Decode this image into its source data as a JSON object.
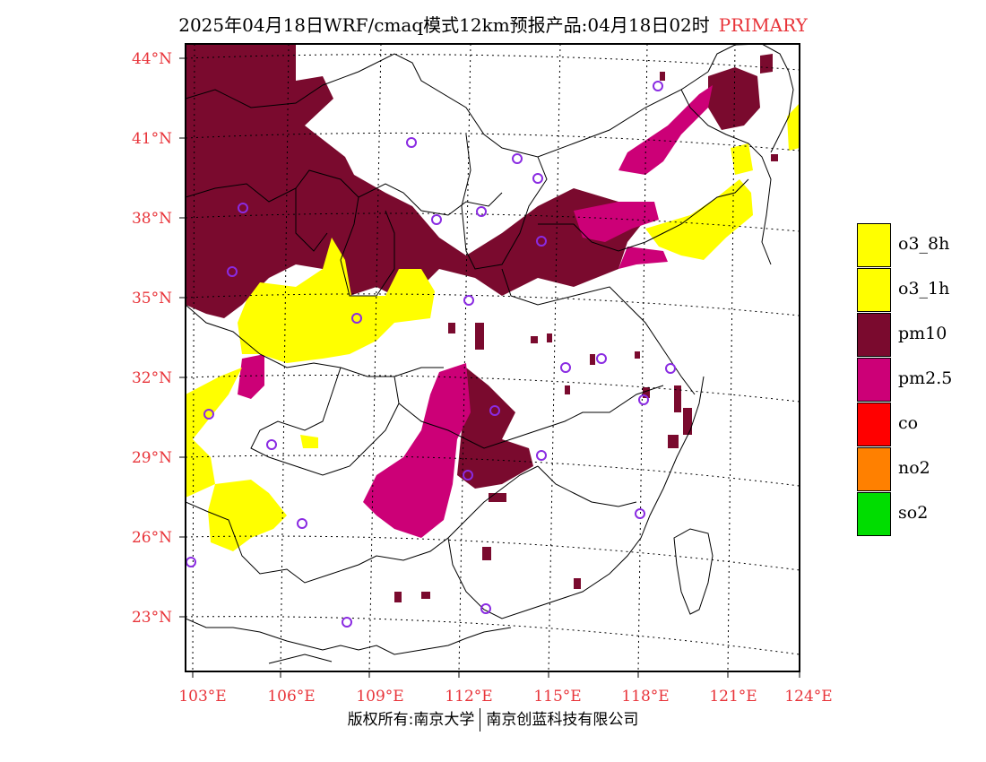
{
  "title": {
    "main": "2025年04月18日WRF/cmaq模式12km预报产品:04月18日02时",
    "tag": "PRIMARY"
  },
  "map": {
    "lat_labels": [
      "44°N",
      "41°N",
      "38°N",
      "35°N",
      "32°N",
      "29°N",
      "26°N",
      "23°N"
    ],
    "lon_labels": [
      "103°E",
      "106°E",
      "109°E",
      "112°E",
      "115°E",
      "118°E",
      "121°E",
      "124°E"
    ],
    "colors": {
      "o3_8h": "#ffff00",
      "o3_1h": "#ffff00",
      "pm10": "#7a0a2e",
      "pm2_5": "#cc0077",
      "co": "#ff0000",
      "no2": "#ff8000",
      "so2": "#00dd00",
      "station": "#8a2be2",
      "axis_label": "#e8343a"
    }
  },
  "legend": [
    {
      "label": "o3_8h",
      "color": "#ffff00"
    },
    {
      "label": "o3_1h",
      "color": "#ffff00"
    },
    {
      "label": "pm10",
      "color": "#7a0a2e"
    },
    {
      "label": "pm2.5",
      "color": "#cc0077"
    },
    {
      "label": "co",
      "color": "#ff0000"
    },
    {
      "label": "no2",
      "color": "#ff8000"
    },
    {
      "label": "so2",
      "color": "#00dd00"
    }
  ],
  "footer": {
    "left": "版权所有:南京大学",
    "right": "南京创蓝科技有限公司"
  }
}
